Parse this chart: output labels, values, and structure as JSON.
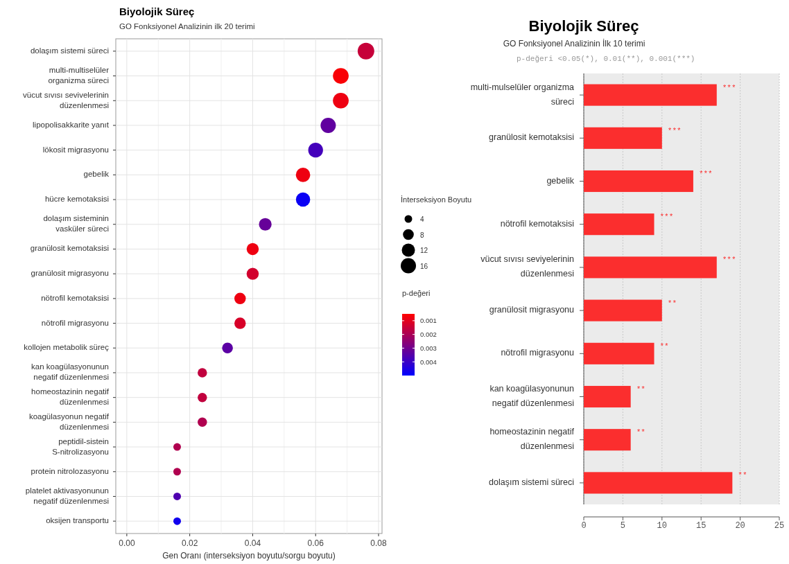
{
  "chart_data": [
    {
      "type": "bubble",
      "orientation": "horizontal",
      "title": "Biyolojik Süreç",
      "subtitle": "GO Fonksiyonel Analizinin ilk 20 terimi",
      "categories": [
        "dolaşım sistemi süreci",
        "multi-multiselüler organizma süreci",
        "vücut sıvısı sevivelerinin düzenlenmesi",
        "lipopolisakkarite yanıt",
        "lökosit migrasyonu",
        "gebelik",
        "hücre kemotaksisi",
        "dolaşım sisteminin vasküler süreci",
        "granülosit kemotaksisi",
        "granülosit migrasyonu",
        "nötrofil kemotaksisi",
        "nötrofil migrasyonu",
        "kollojen metabolik süreç",
        "kan koagülasyonunun negatif düzenlenmesi",
        "homeostazinin negatif düzenlenmesi",
        "koagülasyonun negatif düzenlenmesi",
        "peptidil-sistein S-nitrolizasyonu",
        "protein nitrolozasyonu",
        "platelet aktivasyonunun negatif düzenlenmesi",
        "oksijen transportu"
      ],
      "values": [
        0.076,
        0.068,
        0.068,
        0.064,
        0.06,
        0.056,
        0.056,
        0.044,
        0.04,
        0.04,
        0.036,
        0.036,
        0.032,
        0.024,
        0.024,
        0.024,
        0.016,
        0.016,
        0.016,
        0.016
      ],
      "sizes": [
        19,
        17,
        17,
        16,
        15,
        14,
        14,
        11,
        10,
        10,
        9,
        9,
        8,
        6,
        6,
        6,
        4,
        4,
        4,
        4
      ],
      "size_legend": [
        4,
        8,
        12,
        16
      ],
      "cvalues": [
        0.0015,
        0.0006,
        0.0008,
        0.0033,
        0.0038,
        0.0008,
        0.0048,
        0.0032,
        0.0008,
        0.0013,
        0.0008,
        0.0012,
        0.0034,
        0.0016,
        0.0016,
        0.0019,
        0.0019,
        0.0019,
        0.0036,
        0.0047
      ],
      "clim": [
        0.0005,
        0.005
      ],
      "cticks": [
        0.001,
        0.002,
        0.003,
        0.004
      ],
      "clabel": "p-değeri",
      "legend_title": "İnterseksiyon Boyutu",
      "xlabel": "Gen Oranı  (interseksiyon boyutu/sorgu boyutu)",
      "xlim": [
        -0.0035,
        0.0811
      ],
      "xticks": [
        {
          "value": 0,
          "label": "0.00"
        },
        0.02,
        0.04,
        0.06,
        0.08
      ],
      "grid": true
    },
    {
      "type": "bar",
      "orientation": "horizontal",
      "title": "Biyolojik Süreç",
      "subtitle": "GO Fonksiyonel Analizinin İlk 10 terimi",
      "annotations": [
        "p-değeri <0.05(*), 0.01(**), 0.001(***)"
      ],
      "categories": [
        "multi-mulselüler organizma süreci",
        "granülosit kemotaksisi",
        "gebelik",
        "nötrofil kemotaksisi",
        "vücut sıvısı seviyelerinin düzenlenmesi",
        "granülosit migrasyonu",
        "nötrofil migrasyonu",
        "kan koagülasyonunun negatif düzenlenmesi",
        "homeostazinin negatif düzenlenmesi",
        "dolaşım sistemi süreci"
      ],
      "values": [
        17,
        10,
        14,
        9,
        17,
        10,
        9,
        6,
        6,
        19
      ],
      "value_labels": [
        "***",
        "***",
        "***",
        "***",
        "***",
        "**",
        "**",
        "**",
        "**",
        "**"
      ],
      "color": "#fb2e2e",
      "xlim": [
        0,
        25
      ],
      "xticks": [
        0,
        5,
        10,
        15,
        20,
        25
      ],
      "grid": "x"
    }
  ]
}
